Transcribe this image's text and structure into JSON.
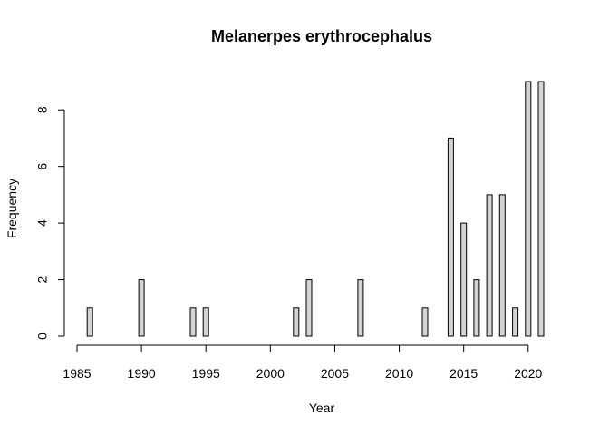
{
  "chart_data": {
    "type": "bar",
    "title": "Melanerpes erythrocephalus",
    "xlabel": "Year",
    "ylabel": "Frequency",
    "x": [
      1986,
      1987,
      1988,
      1989,
      1990,
      1991,
      1992,
      1993,
      1994,
      1995,
      1996,
      1997,
      1998,
      1999,
      2000,
      2001,
      2002,
      2003,
      2004,
      2005,
      2006,
      2007,
      2008,
      2009,
      2010,
      2011,
      2012,
      2013,
      2014,
      2015,
      2016,
      2017,
      2018,
      2019,
      2020,
      2021
    ],
    "values": [
      1,
      0,
      0,
      0,
      2,
      0,
      0,
      0,
      1,
      1,
      0,
      0,
      0,
      0,
      0,
      0,
      1,
      2,
      0,
      0,
      0,
      2,
      0,
      0,
      0,
      0,
      1,
      0,
      7,
      4,
      2,
      5,
      5,
      1,
      9,
      9
    ],
    "xlim": [
      1985,
      2021
    ],
    "ylim": [
      0,
      9
    ],
    "x_ticks": [
      "1985",
      "1990",
      "1995",
      "2000",
      "2005",
      "2010",
      "2015",
      "2020"
    ],
    "y_ticks": [
      "0",
      "2",
      "4",
      "6",
      "8"
    ],
    "grid": false,
    "colors": {
      "bar_fill": "#d3d3d3",
      "bar_stroke": "#000000"
    }
  }
}
